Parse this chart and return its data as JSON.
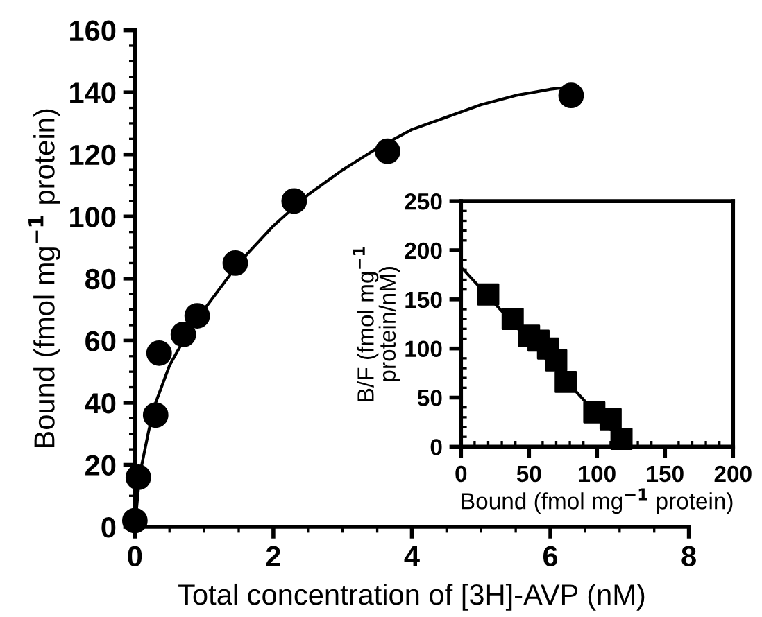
{
  "chart_data": [
    {
      "type": "scatter",
      "xlabel": "Total concentration of [3H]-AVP (nM)",
      "ylabel": "Bound (fmol mg$^{−1}$ protein)",
      "xlim": [
        0,
        8
      ],
      "ylim": [
        0,
        160
      ],
      "xticks": [
        0,
        2,
        4,
        6,
        8
      ],
      "yticks": [
        0,
        20,
        40,
        60,
        80,
        100,
        120,
        140,
        160
      ],
      "grid": false,
      "legend": false,
      "series": [
        {
          "type": "scatter",
          "marker": "circle",
          "color": "#000000",
          "x": [
            0.0,
            0.05,
            0.3,
            0.35,
            0.7,
            0.9,
            1.45,
            2.3,
            3.65,
            6.3
          ],
          "values": [
            2,
            16,
            36,
            56,
            62,
            68,
            85,
            105,
            121,
            139
          ]
        },
        {
          "type": "line",
          "marker": "none",
          "line_style": "solid",
          "color": "#000000",
          "x": [
            0,
            0.05,
            0.1,
            0.2,
            0.3,
            0.5,
            0.75,
            1,
            1.5,
            2,
            2.5,
            3,
            3.5,
            4,
            4.5,
            5,
            5.5,
            6,
            6.2
          ],
          "values": [
            0,
            12,
            20,
            31,
            40,
            52,
            62,
            70,
            85,
            97,
            107,
            115,
            122,
            128,
            132,
            136,
            139,
            141,
            141.5
          ]
        }
      ]
    },
    {
      "type": "scatter",
      "xlabel": "Bound (fmol mg$^{−1}$ protein)",
      "ylabel": "B/F (fmol mg$^{−1}$\nprotein/nM)",
      "xlim": [
        0,
        200
      ],
      "ylim": [
        0,
        250
      ],
      "xticks": [
        0,
        50,
        100,
        150,
        200
      ],
      "yticks": [
        0,
        50,
        100,
        150,
        200,
        250
      ],
      "grid": false,
      "legend": false,
      "series": [
        {
          "type": "scatter",
          "marker": "square",
          "color": "#000000",
          "x": [
            20,
            38,
            50,
            57,
            64,
            70,
            77,
            98,
            110,
            118
          ],
          "values": [
            155,
            130,
            113,
            108,
            100,
            88,
            66,
            35,
            28,
            8
          ]
        },
        {
          "type": "line",
          "marker": "none",
          "line_style": "solid",
          "color": "#000000",
          "x": [
            0,
            122
          ],
          "values": [
            183,
            0
          ]
        }
      ]
    }
  ]
}
